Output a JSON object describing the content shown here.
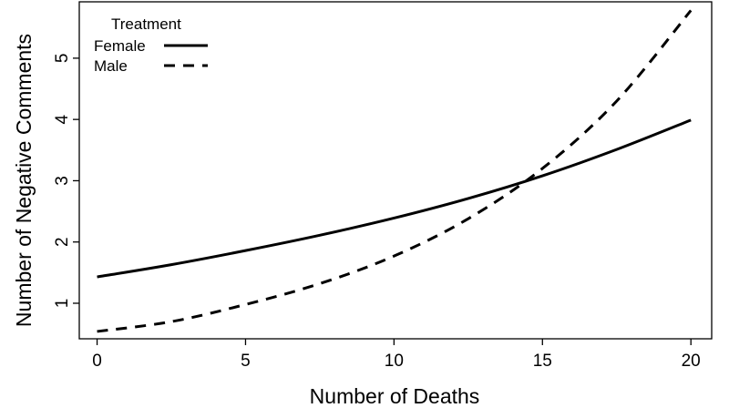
{
  "chart_data": {
    "type": "line",
    "xlabel": "Number of Deaths",
    "ylabel": "Number of Negative Comments",
    "xlim": [
      -0.6,
      20.7
    ],
    "ylim": [
      0.42,
      5.92
    ],
    "xticks": [
      0,
      5,
      10,
      15,
      20
    ],
    "yticks": [
      1,
      2,
      3,
      4,
      5
    ],
    "x_tick_labels": [
      "0",
      "5",
      "10",
      "15",
      "20"
    ],
    "y_tick_labels": [
      "1",
      "2",
      "3",
      "4",
      "5"
    ],
    "grid": false,
    "legend": {
      "title": "Treatment",
      "placement": "top-left"
    },
    "series": [
      {
        "name": "Female",
        "line_style": "solid",
        "color": "#000000",
        "x": [
          0,
          2.5,
          5,
          7.5,
          10,
          12.5,
          15,
          17.5,
          20
        ],
        "y": [
          1.43,
          1.63,
          1.86,
          2.11,
          2.39,
          2.71,
          3.08,
          3.51,
          3.99
        ]
      },
      {
        "name": "Male",
        "line_style": "dashed",
        "color": "#000000",
        "x": [
          0,
          2.5,
          5,
          7.5,
          10,
          12.5,
          15,
          17.5,
          20
        ],
        "y": [
          0.54,
          0.7,
          0.98,
          1.32,
          1.77,
          2.38,
          3.2,
          4.3,
          5.78
        ]
      }
    ]
  }
}
